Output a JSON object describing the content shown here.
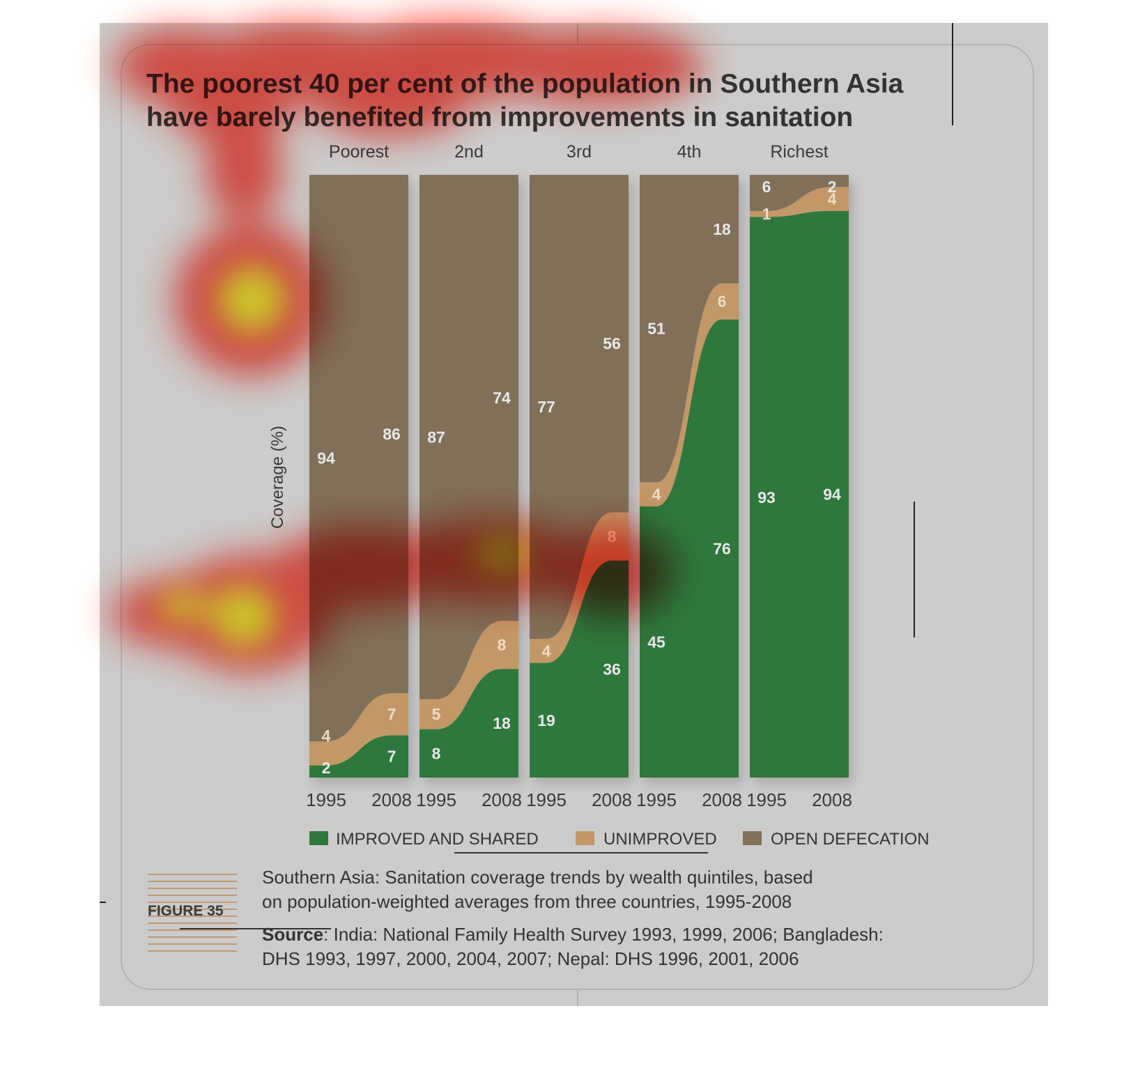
{
  "title": {
    "line1": "The poorest 40 per cent of the population in Southern Asia",
    "line2": "have barely benefited from improvements in sanitation"
  },
  "figure_label": "FIGURE 35",
  "caption": {
    "line1": "Southern Asia: Sanitation coverage trends by wealth quintiles, based",
    "line2": "on population-weighted averages from three countries, 1995-2008",
    "source_label": "Source",
    "source_line1": ": India: National Family Health Survey 1993, 1999, 2006; Bangladesh:",
    "source_line2": "DHS 1993, 1997, 2000, 2004, 2007; Nepal: DHS 1996, 2001, 2006"
  },
  "colors": {
    "improved": "#2e773d",
    "unimproved": "#c29868",
    "open_defecation": "#80705a",
    "panel": "#cccccc",
    "heat_red": "#ff2a1a",
    "heat_yellow": "#ffff30"
  },
  "chart_data": {
    "type": "area",
    "ylabel": "Coverage (%)",
    "ylim": [
      0,
      100
    ],
    "legend_position": "bottom",
    "quintiles": [
      "Poorest",
      "2nd",
      "3rd",
      "4th",
      "Richest"
    ],
    "x": [
      "1995",
      "2008"
    ],
    "series": [
      {
        "name": "IMPROVED AND SHARED",
        "values": [
          [
            2,
            7
          ],
          [
            8,
            18
          ],
          [
            19,
            36
          ],
          [
            45,
            76
          ],
          [
            93,
            94
          ]
        ]
      },
      {
        "name": "UNIMPROVED",
        "values": [
          [
            4,
            7
          ],
          [
            5,
            8
          ],
          [
            4,
            8
          ],
          [
            4,
            6
          ],
          [
            1,
            4
          ]
        ]
      },
      {
        "name": "OPEN DEFECATION",
        "values": [
          [
            94,
            86
          ],
          [
            87,
            74
          ],
          [
            77,
            56
          ],
          [
            51,
            18
          ],
          [
            6,
            2
          ]
        ]
      }
    ]
  }
}
